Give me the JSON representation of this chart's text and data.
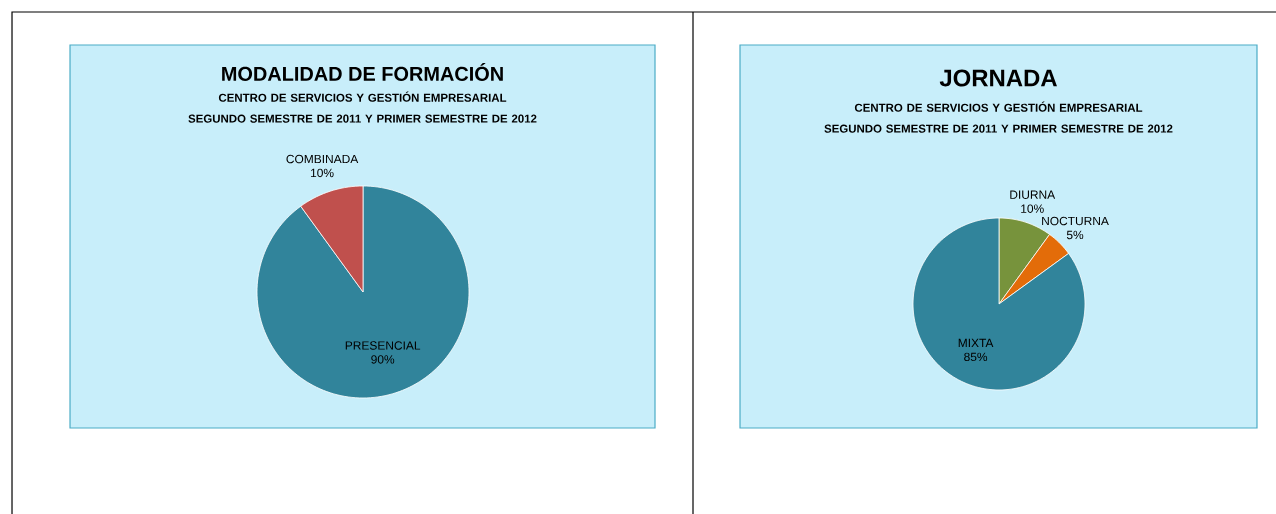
{
  "chart_data": [
    {
      "type": "pie",
      "title": "MODALIDAD DE FORMACIÓN",
      "subtitle": "CENTRO DE SERVICIOS Y GESTIÓN EMPRESARIAL SEGUNDO SEMESTRE DE 2011 Y PRIMER SEMESTRE DE 2012",
      "categories": [
        "PRESENCIAL",
        "COMBINADA"
      ],
      "values": [
        90,
        10
      ],
      "colors": [
        "#31849b",
        "#c0504d"
      ],
      "value_labels": [
        "90%",
        "10%"
      ]
    },
    {
      "type": "pie",
      "title": "JORNADA",
      "subtitle": "CENTRO DE SERVICIOS Y GESTIÓN EMPRESARIAL SEGUNDO SEMESTRE DE 2011 Y PRIMER SEMESTRE DE 2012",
      "categories": [
        "DIURNA",
        "NOCTURNA",
        "MIXTA"
      ],
      "values": [
        10,
        5,
        85
      ],
      "colors": [
        "#77933c",
        "#e36c09",
        "#31849b"
      ],
      "value_labels": [
        "10%",
        "5%",
        "85%"
      ]
    }
  ]
}
